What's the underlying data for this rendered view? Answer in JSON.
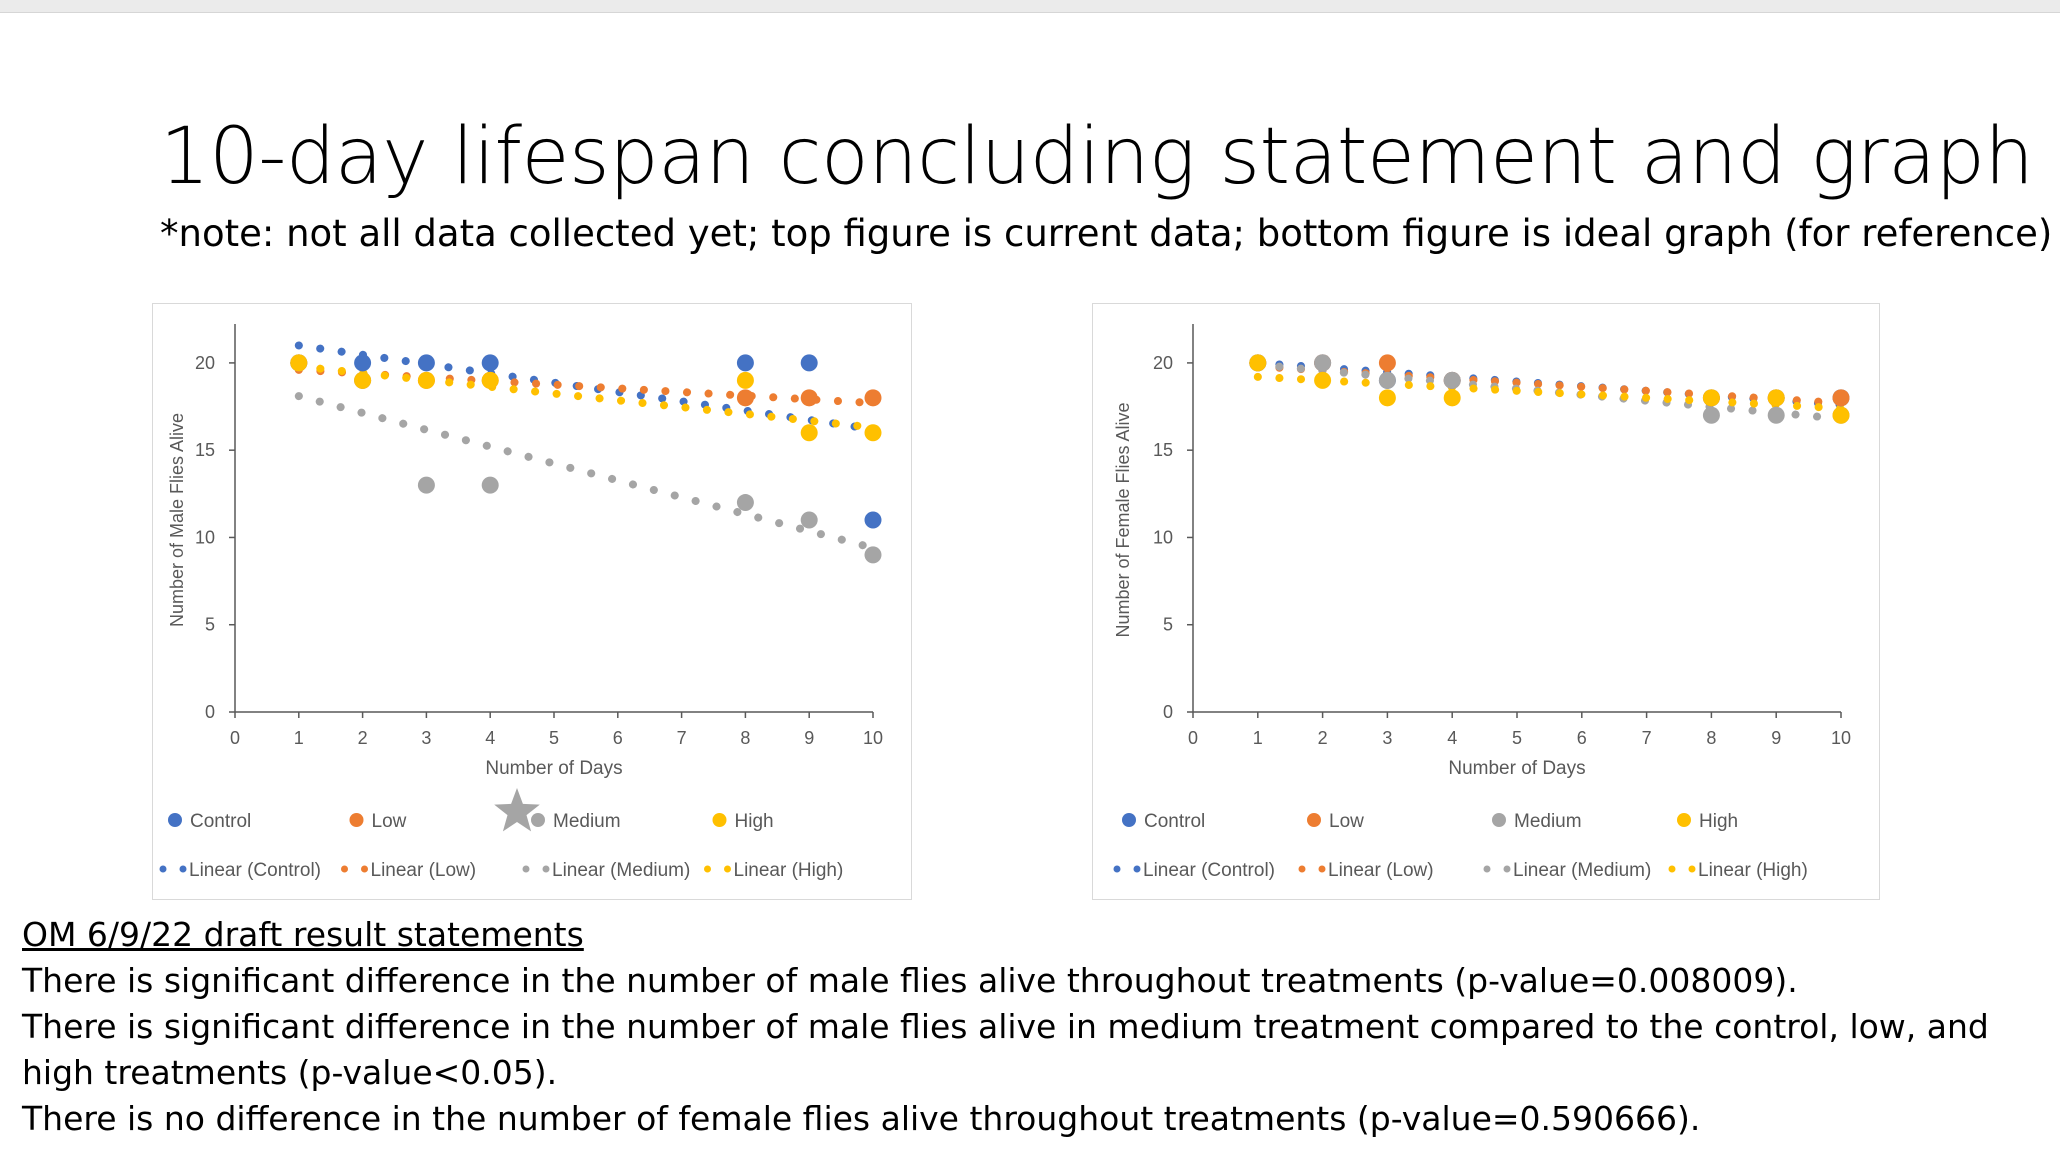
{
  "slide": {
    "title": "10-day lifespan concluding statement and graph",
    "subtitle": "*note: not all data collected yet; top figure is current data; bottom figure is ideal graph (for reference)"
  },
  "colors": {
    "control": "#4472C4",
    "low": "#ED7D31",
    "medium": "#A5A5A5",
    "high": "#FFC000"
  },
  "statements": {
    "heading": "OM 6/9/22 draft result statements",
    "lines": [
      "There is significant difference in the number of male flies alive throughout treatments (p-value=0.008009).",
      "There is significant difference in the number of male flies alive in medium treatment compared to the control, low, and high treatments (p-value<0.05).",
      "There is no difference in the number of female flies alive throughout treatments (p-value=0.590666)."
    ]
  },
  "chart_data": [
    {
      "type": "scatter",
      "xlabel": "Number of Days",
      "ylabel": "Number of Male Flies Alive",
      "xlim": [
        0,
        10
      ],
      "ylim": [
        0,
        22
      ],
      "xticks": [
        0,
        1,
        2,
        3,
        4,
        5,
        6,
        7,
        8,
        9,
        10
      ],
      "yticks": [
        0,
        5,
        10,
        15,
        20
      ],
      "grid": false,
      "legend_position": "bottom",
      "legend_markers": [
        "Control",
        "Low",
        "Medium",
        "High"
      ],
      "legend_trendlines": [
        "Linear (Control)",
        "Linear (Low)",
        "Linear (Medium)",
        "Linear (High)"
      ],
      "series": [
        {
          "name": "Control",
          "color_key": "control",
          "x": [
            1,
            2,
            3,
            4,
            8,
            9,
            10
          ],
          "y": [
            20,
            20,
            20,
            20,
            20,
            20,
            11
          ],
          "trend": [
            21.0,
            16.2
          ]
        },
        {
          "name": "Low",
          "color_key": "low",
          "x": [
            1,
            2,
            3,
            4,
            8,
            9,
            10
          ],
          "y": [
            20,
            19,
            19,
            19,
            18,
            18,
            18
          ],
          "trend": [
            19.6,
            17.7
          ]
        },
        {
          "name": "Medium",
          "color_key": "medium",
          "x": [
            1,
            2,
            3,
            4,
            8,
            9,
            10
          ],
          "y": [
            20,
            19,
            13,
            13,
            12,
            11,
            9
          ],
          "trend": [
            18.1,
            9.4
          ]
        },
        {
          "name": "High",
          "color_key": "high",
          "x": [
            1,
            2,
            3,
            4,
            8,
            9,
            10
          ],
          "y": [
            20,
            19,
            19,
            19,
            19,
            16,
            16
          ],
          "trend": [
            19.8,
            16.3
          ]
        }
      ]
    },
    {
      "type": "scatter",
      "xlabel": "Number of Days",
      "ylabel": "Number of Female Flies Alive",
      "xlim": [
        0,
        10
      ],
      "ylim": [
        0,
        22
      ],
      "xticks": [
        0,
        1,
        2,
        3,
        4,
        5,
        6,
        7,
        8,
        9,
        10
      ],
      "yticks": [
        0,
        5,
        10,
        15,
        20
      ],
      "grid": false,
      "legend_position": "bottom",
      "legend_markers": [
        "Control",
        "Low",
        "Medium",
        "High"
      ],
      "legend_trendlines": [
        "Linear (Control)",
        "Linear (Low)",
        "Linear (Medium)",
        "Linear (High)"
      ],
      "series": [
        {
          "name": "Control",
          "color_key": "control",
          "x": [
            1,
            2,
            3,
            4,
            8,
            9,
            10
          ],
          "y": [
            20,
            20,
            19,
            19,
            18,
            18,
            18
          ],
          "trend": [
            20.0,
            17.6
          ]
        },
        {
          "name": "Low",
          "color_key": "low",
          "x": [
            1,
            2,
            3,
            4,
            8,
            9,
            10
          ],
          "y": [
            20,
            20,
            20,
            19,
            18,
            18,
            18
          ],
          "trend": [
            19.8,
            17.7
          ]
        },
        {
          "name": "Medium",
          "color_key": "medium",
          "x": [
            1,
            2,
            3,
            4,
            8,
            9,
            10
          ],
          "y": [
            20,
            20,
            19,
            19,
            17,
            17,
            17
          ],
          "trend": [
            19.9,
            16.8
          ]
        },
        {
          "name": "High",
          "color_key": "high",
          "x": [
            1,
            2,
            3,
            4,
            8,
            9,
            10
          ],
          "y": [
            20,
            19,
            18,
            18,
            18,
            18,
            17
          ],
          "trend": [
            19.2,
            17.4
          ]
        }
      ]
    }
  ]
}
